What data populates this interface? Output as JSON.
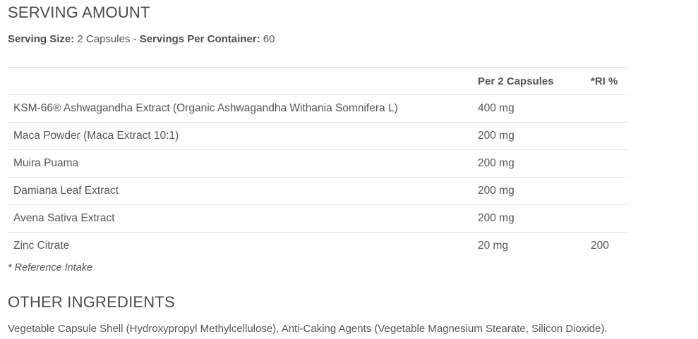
{
  "serving_heading": "SERVING AMOUNT",
  "serving": {
    "size_label": "Serving Size:",
    "size_value": " 2 Capsules - ",
    "per_container_label": "Servings Per Container:",
    "per_container_value": " 60"
  },
  "table": {
    "headers": [
      "",
      "Per 2 Capsules",
      "*RI %"
    ],
    "rows": [
      [
        "KSM-66® Ashwagandha Extract (Organic Ashwagandha Withania Somnifera L)",
        "400 mg",
        ""
      ],
      [
        "Maca Powder (Maca Extract 10:1)",
        "200 mg",
        ""
      ],
      [
        "Muira Puama",
        "200 mg",
        ""
      ],
      [
        "Damiana Leaf Extract",
        "200 mg",
        ""
      ],
      [
        "Avena Sativa Extract",
        "200 mg",
        ""
      ],
      [
        "Zinc Citrate",
        "20 mg",
        "200"
      ]
    ]
  },
  "footnote": "* Reference Intake",
  "other_heading": "OTHER INGREDIENTS",
  "other_text": "Vegetable Capsule Shell (Hydroxypropyl Methylcellulose), Anti-Caking Agents (Vegetable Magnesium Stearate, Silicon Dioxide)."
}
